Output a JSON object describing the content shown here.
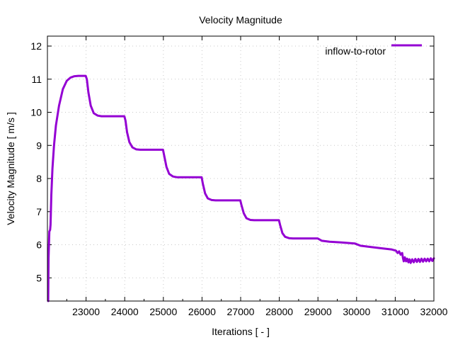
{
  "chart_data": {
    "type": "line",
    "title": "Velocity Magnitude",
    "xlabel": "Iterations [ - ]",
    "ylabel": "Velocity Magnitude [ m/s ]",
    "xlim": [
      22000,
      32000
    ],
    "ylim": [
      4.3,
      12.3
    ],
    "xticks": [
      23000,
      24000,
      25000,
      26000,
      27000,
      28000,
      29000,
      30000,
      31000,
      32000
    ],
    "yticks": [
      5,
      6,
      7,
      8,
      9,
      10,
      11,
      12
    ],
    "grid": true,
    "legend_position": "top-right",
    "series": [
      {
        "name": "inflow-to-rotor",
        "color": "#9400d3",
        "points": [
          [
            22020,
            4.3
          ],
          [
            22030,
            5.6
          ],
          [
            22050,
            6.4
          ],
          [
            22070,
            6.45
          ],
          [
            22080,
            6.6
          ],
          [
            22100,
            7.5
          ],
          [
            22130,
            8.3
          ],
          [
            22170,
            9.0
          ],
          [
            22220,
            9.6
          ],
          [
            22300,
            10.2
          ],
          [
            22400,
            10.7
          ],
          [
            22500,
            10.95
          ],
          [
            22600,
            11.05
          ],
          [
            22700,
            11.09
          ],
          [
            22800,
            11.1
          ],
          [
            22990,
            11.1
          ],
          [
            23020,
            11.0
          ],
          [
            23060,
            10.6
          ],
          [
            23120,
            10.2
          ],
          [
            23200,
            9.97
          ],
          [
            23300,
            9.9
          ],
          [
            23400,
            9.88
          ],
          [
            23990,
            9.88
          ],
          [
            24020,
            9.75
          ],
          [
            24060,
            9.4
          ],
          [
            24120,
            9.1
          ],
          [
            24200,
            8.94
          ],
          [
            24300,
            8.88
          ],
          [
            24400,
            8.87
          ],
          [
            24990,
            8.87
          ],
          [
            25020,
            8.7
          ],
          [
            25080,
            8.35
          ],
          [
            25150,
            8.14
          ],
          [
            25250,
            8.06
          ],
          [
            25350,
            8.04
          ],
          [
            25990,
            8.04
          ],
          [
            26020,
            7.85
          ],
          [
            26080,
            7.55
          ],
          [
            26150,
            7.4
          ],
          [
            26250,
            7.35
          ],
          [
            26350,
            7.34
          ],
          [
            26990,
            7.34
          ],
          [
            27020,
            7.2
          ],
          [
            27080,
            6.95
          ],
          [
            27150,
            6.8
          ],
          [
            27250,
            6.75
          ],
          [
            27350,
            6.74
          ],
          [
            27990,
            6.74
          ],
          [
            28020,
            6.6
          ],
          [
            28080,
            6.35
          ],
          [
            28150,
            6.24
          ],
          [
            28250,
            6.2
          ],
          [
            28350,
            6.19
          ],
          [
            28990,
            6.19
          ],
          [
            29100,
            6.12
          ],
          [
            29300,
            6.09
          ],
          [
            29600,
            6.07
          ],
          [
            29950,
            6.04
          ],
          [
            30100,
            5.97
          ],
          [
            30300,
            5.94
          ],
          [
            30600,
            5.9
          ],
          [
            30900,
            5.86
          ],
          [
            31020,
            5.82
          ],
          [
            31060,
            5.75
          ],
          [
            31100,
            5.8
          ],
          [
            31140,
            5.7
          ],
          [
            31180,
            5.75
          ],
          [
            31200,
            5.6
          ],
          [
            31220,
            5.5
          ],
          [
            31250,
            5.62
          ],
          [
            31280,
            5.5
          ],
          [
            31310,
            5.58
          ],
          [
            31340,
            5.47
          ],
          [
            31370,
            5.56
          ],
          [
            31400,
            5.45
          ],
          [
            31440,
            5.56
          ],
          [
            31480,
            5.47
          ],
          [
            31520,
            5.57
          ],
          [
            31560,
            5.48
          ],
          [
            31600,
            5.57
          ],
          [
            31640,
            5.48
          ],
          [
            31680,
            5.58
          ],
          [
            31720,
            5.49
          ],
          [
            31760,
            5.58
          ],
          [
            31800,
            5.5
          ],
          [
            31840,
            5.58
          ],
          [
            31880,
            5.5
          ],
          [
            31920,
            5.59
          ],
          [
            31960,
            5.51
          ],
          [
            32000,
            5.59
          ]
        ]
      }
    ]
  }
}
